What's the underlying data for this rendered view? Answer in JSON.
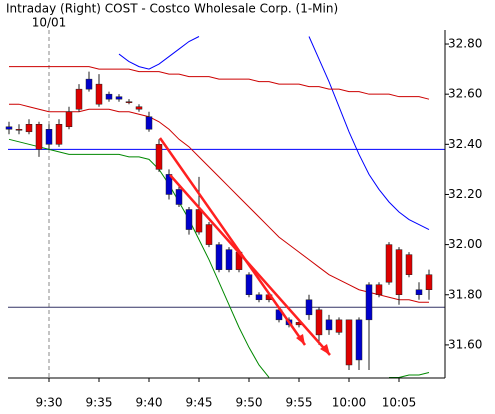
{
  "chart_data": {
    "type": "candlestick",
    "title": "Intraday    (Right)  COST - Costco Wholesale Corp.  (1-Min)",
    "date_label": "10/01",
    "categories": [
      null,
      null,
      null,
      null,
      "9:30",
      null,
      null,
      null,
      null,
      "9:35",
      null,
      null,
      null,
      null,
      "9:40",
      null,
      null,
      null,
      null,
      "9:45",
      null,
      null,
      null,
      null,
      "9:50",
      null,
      null,
      null,
      null,
      "9:55",
      null,
      null,
      null,
      null,
      "10:00",
      null,
      null,
      null,
      null,
      "10:05",
      null,
      null,
      null
    ],
    "open": [
      32.47,
      32.46,
      32.45,
      32.38,
      32.46,
      32.4,
      32.47,
      32.54,
      32.66,
      32.56,
      32.6,
      32.59,
      32.57,
      32.54,
      32.51,
      32.3,
      32.28,
      32.22,
      32.14,
      32.05,
      32.0,
      32.0,
      31.98,
      31.9,
      31.88,
      31.8,
      31.78,
      31.74,
      31.7,
      31.68,
      31.78,
      31.64,
      31.7,
      31.65,
      31.52,
      31.7,
      31.84,
      31.8,
      31.85,
      31.8,
      31.88,
      31.82,
      31.82
    ],
    "high": [
      32.49,
      32.48,
      32.5,
      32.49,
      32.48,
      32.5,
      32.55,
      32.64,
      32.69,
      32.68,
      32.61,
      32.6,
      32.58,
      32.56,
      32.53,
      32.42,
      32.3,
      32.24,
      32.15,
      32.27,
      32.09,
      32.01,
      31.99,
      31.98,
      31.89,
      31.81,
      31.81,
      31.75,
      31.71,
      31.7,
      31.8,
      31.75,
      31.72,
      31.71,
      31.7,
      31.71,
      31.85,
      31.85,
      32.01,
      31.99,
      31.97,
      31.85,
      31.9
    ],
    "low": [
      32.44,
      32.44,
      32.44,
      32.35,
      32.38,
      32.39,
      32.46,
      32.53,
      32.61,
      32.55,
      32.57,
      32.57,
      32.56,
      32.53,
      32.45,
      32.29,
      32.18,
      32.15,
      32.04,
      32.04,
      31.99,
      31.89,
      31.89,
      31.89,
      31.79,
      31.77,
      31.77,
      31.69,
      31.67,
      31.67,
      31.7,
      31.6,
      31.64,
      31.64,
      31.5,
      31.5,
      31.5,
      31.79,
      31.84,
      31.76,
      31.87,
      31.78,
      31.78
    ],
    "close": [
      32.46,
      32.46,
      32.48,
      32.48,
      32.4,
      32.48,
      32.53,
      32.62,
      32.62,
      32.64,
      32.58,
      32.58,
      32.57,
      32.55,
      32.46,
      32.4,
      32.2,
      32.16,
      32.06,
      32.14,
      32.08,
      31.9,
      31.9,
      31.97,
      31.8,
      31.78,
      31.8,
      31.7,
      31.68,
      31.69,
      31.72,
      31.74,
      31.66,
      31.7,
      31.7,
      31.54,
      31.7,
      31.84,
      32.0,
      31.98,
      31.96,
      31.8,
      31.88
    ],
    "up_color": "#dd0000",
    "down_color": "#0000cc",
    "overlays": [
      {
        "color": "#0000ff",
        "values": [
          null,
          null,
          null,
          null,
          null,
          null,
          null,
          null,
          null,
          null,
          null,
          32.76,
          32.73,
          32.71,
          32.7,
          32.72,
          32.75,
          32.78,
          32.81,
          32.83,
          null,
          null,
          null,
          null,
          null,
          null,
          null,
          null,
          null,
          null,
          32.83,
          32.74,
          32.65,
          32.55,
          32.45,
          32.36,
          32.28,
          32.22,
          32.17,
          32.13,
          32.1,
          32.08,
          32.06
        ]
      },
      {
        "color": "#cc0000",
        "values": [
          32.71,
          32.71,
          32.71,
          32.71,
          32.71,
          32.71,
          32.71,
          32.71,
          32.71,
          32.7,
          32.7,
          32.7,
          32.7,
          32.69,
          32.69,
          32.69,
          32.68,
          32.68,
          32.67,
          32.67,
          32.67,
          32.66,
          32.66,
          32.66,
          32.66,
          32.65,
          32.65,
          32.64,
          32.64,
          32.64,
          32.63,
          32.63,
          32.62,
          32.62,
          32.61,
          32.61,
          32.6,
          32.6,
          32.6,
          32.59,
          32.59,
          32.59,
          32.58
        ]
      },
      {
        "color": "#cc0000",
        "values": [
          32.56,
          32.56,
          32.55,
          32.54,
          32.53,
          32.53,
          32.53,
          32.53,
          32.54,
          32.54,
          32.54,
          32.53,
          32.53,
          32.52,
          32.51,
          32.49,
          32.46,
          32.42,
          32.39,
          32.35,
          32.31,
          32.27,
          32.23,
          32.19,
          32.15,
          32.11,
          32.07,
          32.03,
          32.0,
          31.97,
          31.94,
          31.91,
          31.88,
          31.86,
          31.84,
          31.82,
          31.81,
          31.8,
          31.79,
          31.78,
          31.78,
          31.77,
          31.77
        ]
      },
      {
        "color": "#008800",
        "values": [
          32.42,
          32.41,
          32.4,
          32.39,
          32.38,
          32.37,
          32.36,
          32.36,
          32.36,
          32.36,
          32.36,
          32.36,
          32.35,
          32.35,
          32.34,
          32.3,
          32.24,
          32.17,
          32.1,
          32.02,
          31.94,
          31.85,
          31.76,
          31.67,
          31.59,
          31.52,
          31.47,
          null,
          null,
          null,
          null,
          null,
          null,
          null,
          null,
          null,
          null,
          null,
          31.47,
          31.47,
          31.48,
          31.48,
          31.49
        ]
      }
    ],
    "hlines": [
      {
        "value": 32.38,
        "color": "#0000ff"
      },
      {
        "value": 31.75,
        "color": "#333366"
      }
    ],
    "ylim": [
      31.468,
      32.836
    ],
    "yticks": [
      {
        "value": 32.8,
        "label": "32.80"
      },
      {
        "value": 32.6,
        "label": "32.60"
      },
      {
        "value": 32.4,
        "label": "32.40"
      },
      {
        "value": 32.2,
        "label": "32.20"
      },
      {
        "value": 32.0,
        "label": "32.00"
      },
      {
        "value": 31.8,
        "label": "31.80"
      },
      {
        "value": 31.6,
        "label": "31.60"
      }
    ]
  }
}
